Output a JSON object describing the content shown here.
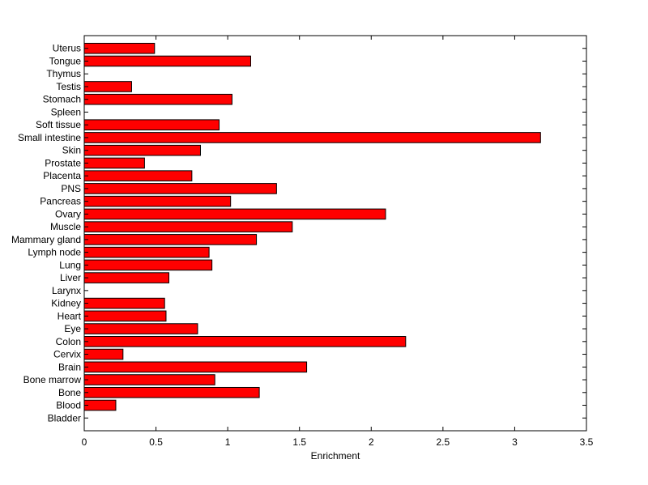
{
  "chart_data": {
    "type": "bar",
    "orientation": "horizontal",
    "xlabel": "Enrichment",
    "ylabel": "",
    "title": "",
    "xlim": [
      0,
      3.5
    ],
    "xticks": [
      0,
      0.5,
      1,
      1.5,
      2,
      2.5,
      3,
      3.5
    ],
    "xtick_labels": [
      "0",
      "0.5",
      "1",
      "1.5",
      "2",
      "2.5",
      "3",
      "3.5"
    ],
    "bar_color": "#ff0000",
    "bar_edge_color": "#000000",
    "grid": false,
    "categories": [
      "Bladder",
      "Blood",
      "Bone",
      "Bone marrow",
      "Brain",
      "Cervix",
      "Colon",
      "Eye",
      "Heart",
      "Kidney",
      "Larynx",
      "Liver",
      "Lung",
      "Lymph node",
      "Mammary gland",
      "Muscle",
      "Ovary",
      "Pancreas",
      "PNS",
      "Placenta",
      "Prostate",
      "Skin",
      "Small intestine",
      "Soft tissue",
      "Spleen",
      "Stomach",
      "Testis",
      "Thymus",
      "Tongue",
      "Uterus"
    ],
    "values": [
      0,
      0.22,
      1.22,
      0.91,
      1.55,
      0.27,
      2.24,
      0.79,
      0.57,
      0.56,
      0,
      0.59,
      0.89,
      0.87,
      1.2,
      1.45,
      2.1,
      1.02,
      1.34,
      0.75,
      0.42,
      0.81,
      3.18,
      0.94,
      0,
      1.03,
      0.33,
      0,
      1.16,
      0.49
    ]
  }
}
